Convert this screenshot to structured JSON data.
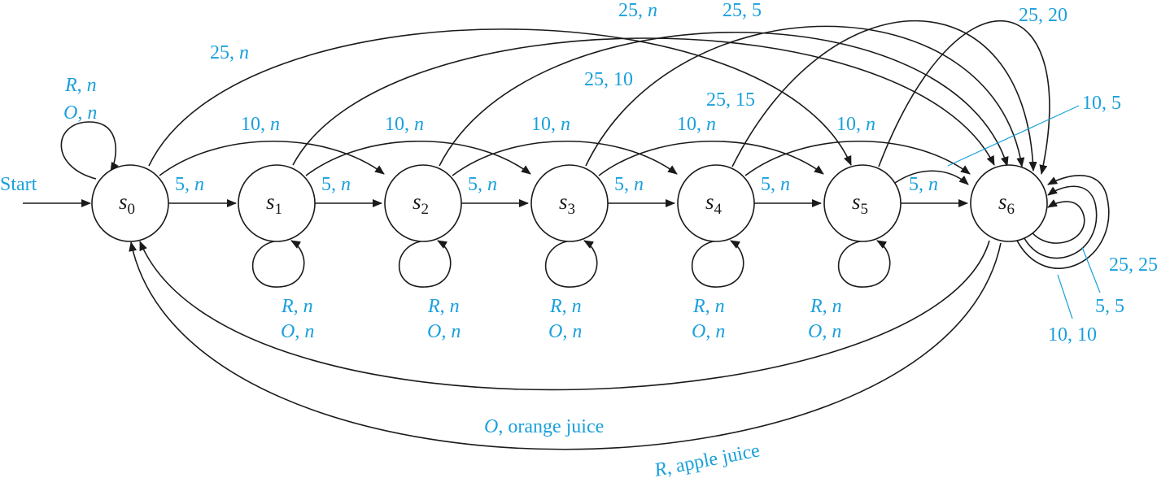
{
  "start_label": "Start",
  "states": [
    {
      "base": "s",
      "sub": "0"
    },
    {
      "base": "s",
      "sub": "1"
    },
    {
      "base": "s",
      "sub": "2"
    },
    {
      "base": "s",
      "sub": "3"
    },
    {
      "base": "s",
      "sub": "4"
    },
    {
      "base": "s",
      "sub": "5"
    },
    {
      "base": "s",
      "sub": "6"
    }
  ],
  "s0_loop": {
    "line1": [
      "R",
      ", ",
      "n"
    ],
    "line2": [
      "O",
      ", ",
      "n"
    ]
  },
  "five_labels": [
    [
      "5, ",
      "n"
    ],
    [
      "5, ",
      "n"
    ],
    [
      "5, ",
      "n"
    ],
    [
      "5, ",
      "n"
    ],
    [
      "5, ",
      "n"
    ],
    [
      "5, ",
      "n"
    ]
  ],
  "ten_labels": [
    [
      "10, ",
      "n"
    ],
    [
      "10, ",
      "n"
    ],
    [
      "10, ",
      "n"
    ],
    [
      "10, ",
      "n"
    ],
    [
      "10, ",
      "n"
    ]
  ],
  "ten_s5_label": "10, 5",
  "twentyfive_labels": [
    [
      "25, ",
      "n"
    ],
    [
      "25, ",
      "n"
    ],
    "25, 5",
    "25, 10",
    "25, 15",
    "25, 20"
  ],
  "self_loops": [
    {
      "line1": [
        "R",
        ", ",
        "n"
      ],
      "line2": [
        "O",
        ", ",
        "n"
      ]
    },
    {
      "line1": [
        "R",
        ", ",
        "n"
      ],
      "line2": [
        "O",
        ", ",
        "n"
      ]
    },
    {
      "line1": [
        "R",
        ", ",
        "n"
      ],
      "line2": [
        "O",
        ", ",
        "n"
      ]
    },
    {
      "line1": [
        "R",
        ", ",
        "n"
      ],
      "line2": [
        "O",
        ", ",
        "n"
      ]
    },
    {
      "line1": [
        "R",
        ", ",
        "n"
      ],
      "line2": [
        "O",
        ", ",
        "n"
      ]
    }
  ],
  "s6_loops": [
    "25, 25",
    "5, 5",
    "10, 10"
  ],
  "return_orange": {
    "letter": "O",
    "text": ", orange juice"
  },
  "return_apple": {
    "letter": "R",
    "text": ", apple juice"
  }
}
